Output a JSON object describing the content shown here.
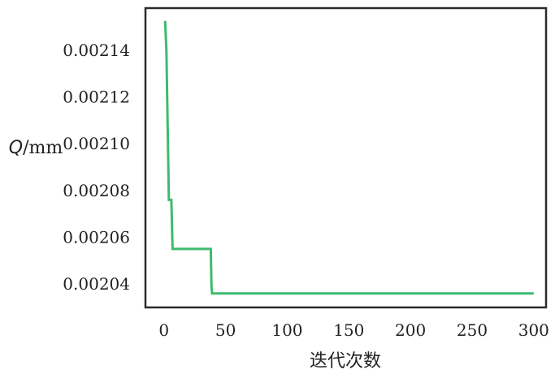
{
  "chart_data": {
    "type": "line",
    "title": "",
    "xlabel": "迭代次数",
    "ylabel": {
      "symbol": "Q",
      "unit": "/mm"
    },
    "xlim": [
      -15,
      310
    ],
    "ylim": [
      0.00203,
      0.002158
    ],
    "x_ticks": [
      0,
      50,
      100,
      150,
      200,
      250,
      300
    ],
    "y_ticks": [
      0.00204,
      0.00206,
      0.00208,
      0.0021,
      0.00212,
      0.00214
    ],
    "x_tick_labels": [
      "0",
      "50",
      "100",
      "150",
      "200",
      "250",
      "300"
    ],
    "y_tick_labels": [
      "0.00204",
      "0.00206",
      "0.00208",
      "0.00210",
      "0.00212",
      "0.00214"
    ],
    "grid": false,
    "legend": "none",
    "series": [
      {
        "color": "#3dbb6e",
        "x": [
          0,
          1,
          2,
          4,
          5,
          6,
          7,
          38,
          38.5,
          39,
          300
        ],
        "y": [
          0.002152,
          0.002152,
          0.00214,
          0.002076,
          0.002076,
          0.002076,
          0.002055,
          0.002055,
          0.00204,
          0.002036,
          0.002036
        ]
      }
    ]
  }
}
